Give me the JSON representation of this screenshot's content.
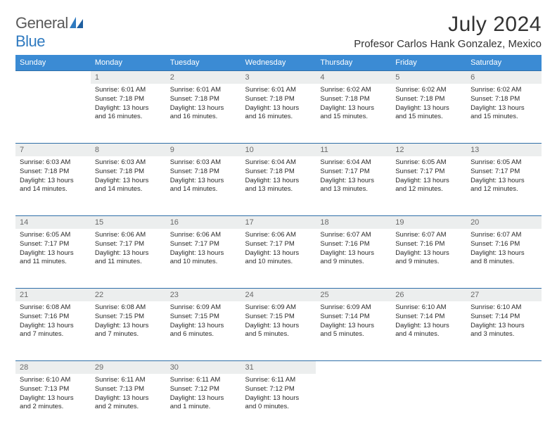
{
  "logo": {
    "part1": "General",
    "part2": "Blue"
  },
  "title": "July 2024",
  "location": "Profesor Carlos Hank Gonzalez, Mexico",
  "colors": {
    "header_bg": "#3b8bd4",
    "header_text": "#ffffff",
    "daynum_bg": "#eceeee",
    "daynum_text": "#6a6a6a",
    "rule": "#2f6fa8",
    "body_text": "#2a2a2a",
    "logo_gray": "#5a5a5a",
    "logo_blue": "#2f7ac0"
  },
  "weekdays": [
    "Sunday",
    "Monday",
    "Tuesday",
    "Wednesday",
    "Thursday",
    "Friday",
    "Saturday"
  ],
  "weeks": [
    [
      null,
      {
        "n": "1",
        "sr": "6:01 AM",
        "ss": "7:18 PM",
        "dl1": "Daylight: 13 hours",
        "dl2": "and 16 minutes."
      },
      {
        "n": "2",
        "sr": "6:01 AM",
        "ss": "7:18 PM",
        "dl1": "Daylight: 13 hours",
        "dl2": "and 16 minutes."
      },
      {
        "n": "3",
        "sr": "6:01 AM",
        "ss": "7:18 PM",
        "dl1": "Daylight: 13 hours",
        "dl2": "and 16 minutes."
      },
      {
        "n": "4",
        "sr": "6:02 AM",
        "ss": "7:18 PM",
        "dl1": "Daylight: 13 hours",
        "dl2": "and 15 minutes."
      },
      {
        "n": "5",
        "sr": "6:02 AM",
        "ss": "7:18 PM",
        "dl1": "Daylight: 13 hours",
        "dl2": "and 15 minutes."
      },
      {
        "n": "6",
        "sr": "6:02 AM",
        "ss": "7:18 PM",
        "dl1": "Daylight: 13 hours",
        "dl2": "and 15 minutes."
      }
    ],
    [
      {
        "n": "7",
        "sr": "6:03 AM",
        "ss": "7:18 PM",
        "dl1": "Daylight: 13 hours",
        "dl2": "and 14 minutes."
      },
      {
        "n": "8",
        "sr": "6:03 AM",
        "ss": "7:18 PM",
        "dl1": "Daylight: 13 hours",
        "dl2": "and 14 minutes."
      },
      {
        "n": "9",
        "sr": "6:03 AM",
        "ss": "7:18 PM",
        "dl1": "Daylight: 13 hours",
        "dl2": "and 14 minutes."
      },
      {
        "n": "10",
        "sr": "6:04 AM",
        "ss": "7:18 PM",
        "dl1": "Daylight: 13 hours",
        "dl2": "and 13 minutes."
      },
      {
        "n": "11",
        "sr": "6:04 AM",
        "ss": "7:17 PM",
        "dl1": "Daylight: 13 hours",
        "dl2": "and 13 minutes."
      },
      {
        "n": "12",
        "sr": "6:05 AM",
        "ss": "7:17 PM",
        "dl1": "Daylight: 13 hours",
        "dl2": "and 12 minutes."
      },
      {
        "n": "13",
        "sr": "6:05 AM",
        "ss": "7:17 PM",
        "dl1": "Daylight: 13 hours",
        "dl2": "and 12 minutes."
      }
    ],
    [
      {
        "n": "14",
        "sr": "6:05 AM",
        "ss": "7:17 PM",
        "dl1": "Daylight: 13 hours",
        "dl2": "and 11 minutes."
      },
      {
        "n": "15",
        "sr": "6:06 AM",
        "ss": "7:17 PM",
        "dl1": "Daylight: 13 hours",
        "dl2": "and 11 minutes."
      },
      {
        "n": "16",
        "sr": "6:06 AM",
        "ss": "7:17 PM",
        "dl1": "Daylight: 13 hours",
        "dl2": "and 10 minutes."
      },
      {
        "n": "17",
        "sr": "6:06 AM",
        "ss": "7:17 PM",
        "dl1": "Daylight: 13 hours",
        "dl2": "and 10 minutes."
      },
      {
        "n": "18",
        "sr": "6:07 AM",
        "ss": "7:16 PM",
        "dl1": "Daylight: 13 hours",
        "dl2": "and 9 minutes."
      },
      {
        "n": "19",
        "sr": "6:07 AM",
        "ss": "7:16 PM",
        "dl1": "Daylight: 13 hours",
        "dl2": "and 9 minutes."
      },
      {
        "n": "20",
        "sr": "6:07 AM",
        "ss": "7:16 PM",
        "dl1": "Daylight: 13 hours",
        "dl2": "and 8 minutes."
      }
    ],
    [
      {
        "n": "21",
        "sr": "6:08 AM",
        "ss": "7:16 PM",
        "dl1": "Daylight: 13 hours",
        "dl2": "and 7 minutes."
      },
      {
        "n": "22",
        "sr": "6:08 AM",
        "ss": "7:15 PM",
        "dl1": "Daylight: 13 hours",
        "dl2": "and 7 minutes."
      },
      {
        "n": "23",
        "sr": "6:09 AM",
        "ss": "7:15 PM",
        "dl1": "Daylight: 13 hours",
        "dl2": "and 6 minutes."
      },
      {
        "n": "24",
        "sr": "6:09 AM",
        "ss": "7:15 PM",
        "dl1": "Daylight: 13 hours",
        "dl2": "and 5 minutes."
      },
      {
        "n": "25",
        "sr": "6:09 AM",
        "ss": "7:14 PM",
        "dl1": "Daylight: 13 hours",
        "dl2": "and 5 minutes."
      },
      {
        "n": "26",
        "sr": "6:10 AM",
        "ss": "7:14 PM",
        "dl1": "Daylight: 13 hours",
        "dl2": "and 4 minutes."
      },
      {
        "n": "27",
        "sr": "6:10 AM",
        "ss": "7:14 PM",
        "dl1": "Daylight: 13 hours",
        "dl2": "and 3 minutes."
      }
    ],
    [
      {
        "n": "28",
        "sr": "6:10 AM",
        "ss": "7:13 PM",
        "dl1": "Daylight: 13 hours",
        "dl2": "and 2 minutes."
      },
      {
        "n": "29",
        "sr": "6:11 AM",
        "ss": "7:13 PM",
        "dl1": "Daylight: 13 hours",
        "dl2": "and 2 minutes."
      },
      {
        "n": "30",
        "sr": "6:11 AM",
        "ss": "7:12 PM",
        "dl1": "Daylight: 13 hours",
        "dl2": "and 1 minute."
      },
      {
        "n": "31",
        "sr": "6:11 AM",
        "ss": "7:12 PM",
        "dl1": "Daylight: 13 hours",
        "dl2": "and 0 minutes."
      },
      null,
      null,
      null
    ]
  ],
  "labels": {
    "sunrise": "Sunrise:",
    "sunset": "Sunset:"
  }
}
